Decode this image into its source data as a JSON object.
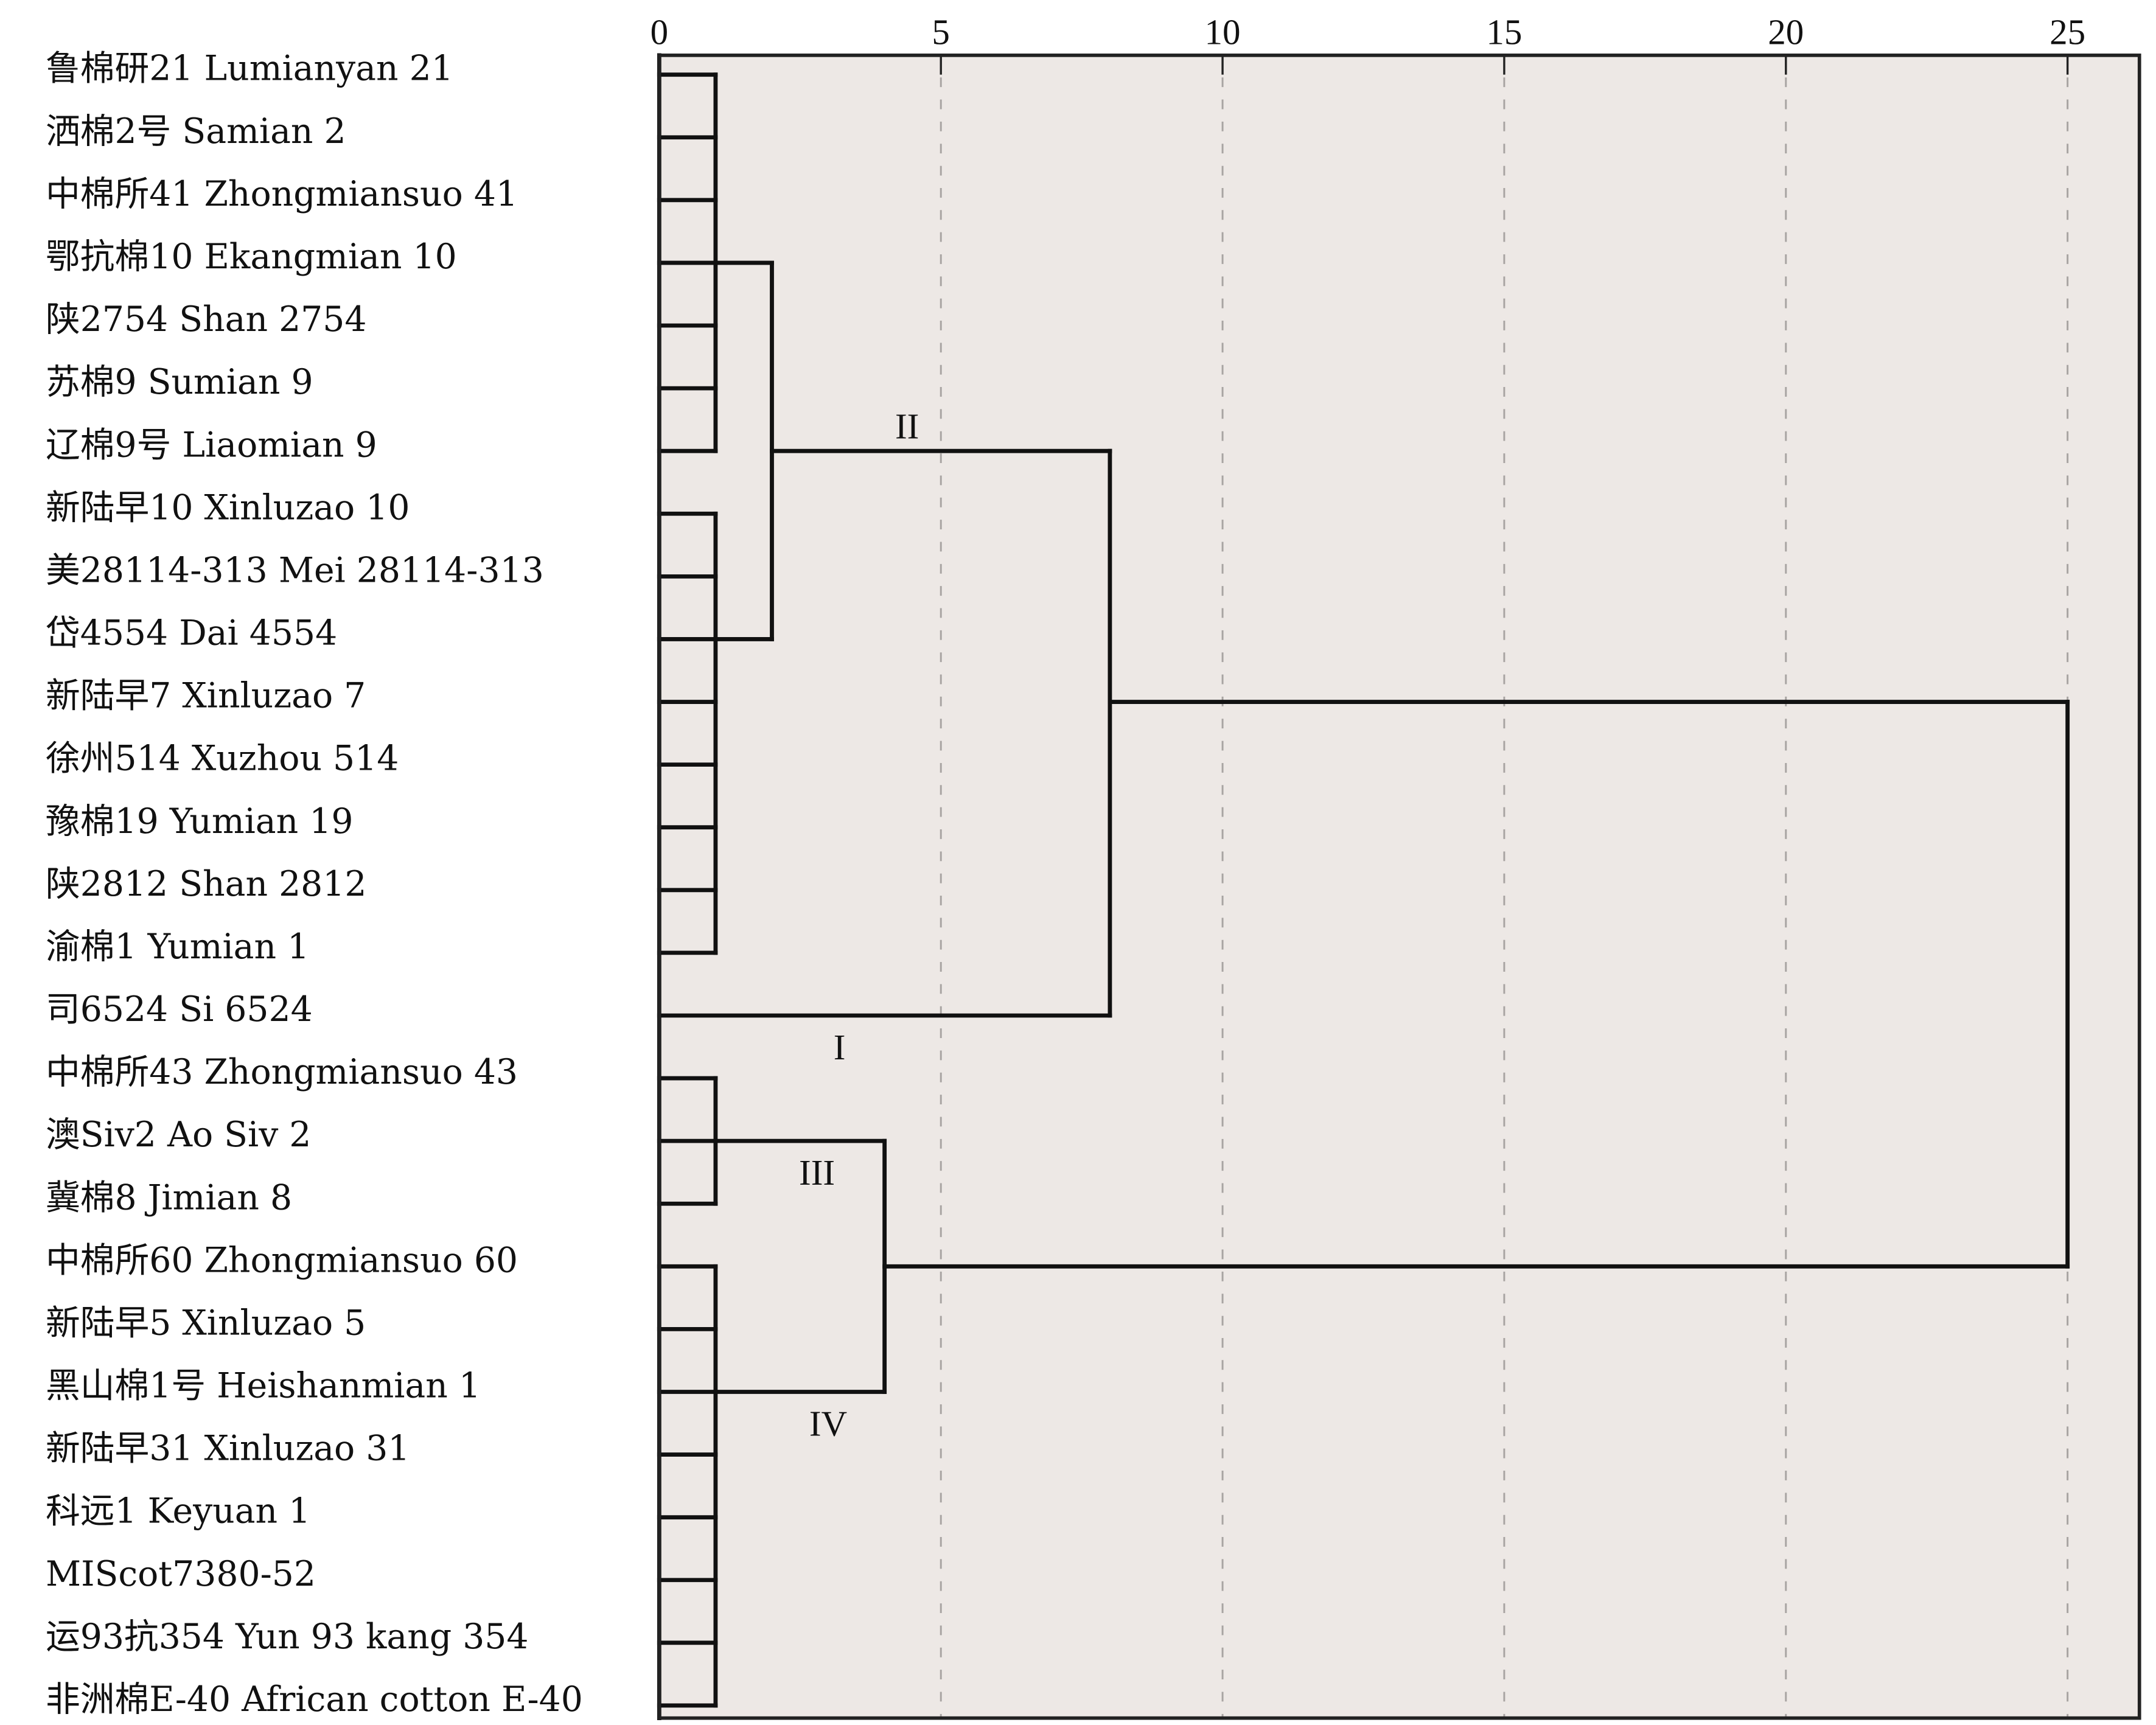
{
  "chart_data": {
    "type": "dendrogram",
    "x_ticks": [
      "0",
      "5",
      "10",
      "15",
      "20",
      "25"
    ],
    "xlim": [
      0,
      25
    ],
    "grid": "vertical dashed",
    "leaves": [
      "鲁棉研21 Lumianyan 21",
      "洒棉2号 Samian 2",
      "中棉所41 Zhongmiansuo 41",
      "鄂抗棉10 Ekangmian 10",
      "陕2754 Shan 2754",
      "苏棉9 Sumian 9",
      "辽棉9号 Liaomian 9",
      "新陆早10 Xinluzao 10",
      "美28114-313 Mei 28114-313",
      "岱4554 Dai 4554",
      "新陆早7 Xinluzao 7",
      "徐州514 Xuzhou 514",
      "豫棉19 Yumian 19",
      "陕2812 Shan 2812",
      "渝棉1 Yumian 1",
      "司6524 Si 6524",
      "中棉所43 Zhongmiansuo 43",
      "澳Siv2 Ao Siv 2",
      "冀棉8 Jimian 8",
      "中棉所60 Zhongmiansuo 60",
      "新陆早5 Xinluzao 5",
      "黑山棉1号 Heishanmian 1",
      "新陆早31 Xinluzao 31",
      "科远1 Keyuan 1",
      "MIScot7380-52",
      "运93抗354 Yun 93 kang 354",
      "非洲棉E-40 African cotton E-40"
    ],
    "leaf_groups": [
      {
        "rows": [
          0,
          6
        ],
        "height": 1
      },
      {
        "rows": [
          7,
          14
        ],
        "height": 1
      },
      {
        "rows": [
          16,
          18
        ],
        "height": 1
      },
      {
        "rows": [
          19,
          26
        ],
        "height": 1
      }
    ],
    "merges": [
      {
        "name": "A+B",
        "children_rows": [
          3,
          9
        ],
        "from_height": 1,
        "height": 2,
        "out_row": 6
      },
      {
        "name": "II+Si6524",
        "children_rows": [
          6,
          15
        ],
        "from_heights": [
          2,
          0
        ],
        "height": 8,
        "out_row": 10
      },
      {
        "name": "III+IV",
        "children_rows": [
          17,
          21
        ],
        "from_height": 1,
        "height": 4,
        "out_row": 19
      },
      {
        "name": "root",
        "children_rows": [
          10,
          19
        ],
        "from_heights": [
          8,
          4
        ],
        "height": 25
      }
    ],
    "cluster_labels": [
      {
        "text": "II",
        "x": 4.4,
        "row": 5.6
      },
      {
        "text": "I",
        "x": 3.2,
        "row": 15.5
      },
      {
        "text": "III",
        "x": 2.8,
        "row": 17.5
      },
      {
        "text": "IV",
        "x": 3.0,
        "row": 21.5
      }
    ]
  },
  "colors": {
    "plot_bg": "#ede8e5",
    "line": "#111111",
    "grid": "#a8a4a2"
  }
}
